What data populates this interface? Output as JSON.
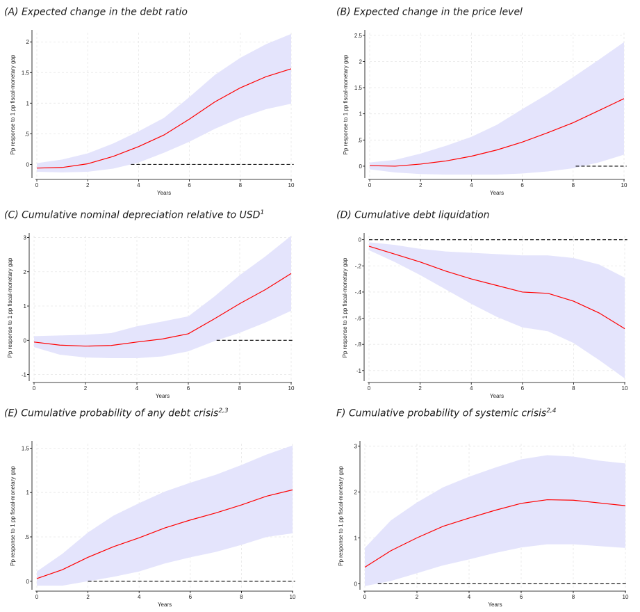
{
  "charts": [
    {
      "id": "A",
      "title": "(A) Expected change in the debt ratio",
      "sup": "",
      "chart_data": {
        "type": "area",
        "xlabel": "Years",
        "ylabel": "Pp response to 1 pp fiscal-monetary gap",
        "xlim": [
          0,
          10
        ],
        "ylim": [
          -0.2,
          2.15
        ],
        "xticks": [
          0,
          2,
          4,
          6,
          8,
          10
        ],
        "yticks": [
          0,
          0.5,
          1,
          1.5,
          2
        ],
        "ytick_labels": [
          "0",
          ".5",
          "1",
          "1.5",
          "2"
        ],
        "grid": true,
        "x": [
          0,
          1,
          2,
          3,
          4,
          5,
          6,
          7,
          8,
          9,
          10
        ],
        "series": [
          {
            "kind": "point_estimate",
            "color": "#ff0000",
            "values": [
              -0.06,
              -0.05,
              0.01,
              0.13,
              0.29,
              0.48,
              0.74,
              1.02,
              1.25,
              1.43,
              1.56
            ]
          },
          {
            "kind": "band_upper",
            "color": "#e4e4fc",
            "values": [
              0.02,
              0.08,
              0.18,
              0.34,
              0.54,
              0.76,
              1.1,
              1.46,
              1.74,
              1.96,
              2.13
            ]
          },
          {
            "kind": "band_lower",
            "color": "#e4e4fc",
            "values": [
              -0.12,
              -0.13,
              -0.12,
              -0.07,
              0.03,
              0.19,
              0.37,
              0.58,
              0.76,
              0.9,
              0.99
            ]
          },
          {
            "kind": "zero_line",
            "color": "#000000",
            "dashed": true,
            "x_from": 3.7,
            "x_to": 10.1,
            "value": 0
          }
        ]
      }
    },
    {
      "id": "B",
      "title": "(B) Expected change in the price level",
      "sup": "",
      "chart_data": {
        "type": "area",
        "xlabel": "Years",
        "ylabel": "Pp response to 1 pp fiscal-monetary gap",
        "xlim": [
          0,
          10
        ],
        "ylim": [
          -0.2,
          2.55
        ],
        "xticks": [
          0,
          2,
          4,
          6,
          8,
          10
        ],
        "yticks": [
          0,
          0.5,
          1,
          1.5,
          2,
          2.5
        ],
        "ytick_labels": [
          "0",
          ".5",
          "1",
          "1.5",
          "2",
          "2.5"
        ],
        "grid": true,
        "x": [
          0,
          1,
          2,
          3,
          4,
          5,
          6,
          7,
          8,
          9,
          10
        ],
        "series": [
          {
            "kind": "point_estimate",
            "color": "#ff0000",
            "values": [
              0.01,
              0.0,
              0.04,
              0.1,
              0.19,
              0.31,
              0.46,
              0.64,
              0.83,
              1.06,
              1.29
            ]
          },
          {
            "kind": "band_upper",
            "color": "#e4e4fc",
            "values": [
              0.07,
              0.12,
              0.24,
              0.39,
              0.56,
              0.79,
              1.09,
              1.38,
              1.7,
              2.03,
              2.37
            ]
          },
          {
            "kind": "band_lower",
            "color": "#e4e4fc",
            "values": [
              -0.06,
              -0.12,
              -0.15,
              -0.16,
              -0.16,
              -0.16,
              -0.14,
              -0.1,
              -0.04,
              0.07,
              0.22
            ]
          },
          {
            "kind": "zero_line",
            "color": "#000000",
            "dashed": true,
            "x_from": 8.1,
            "x_to": 10.1,
            "value": 0
          }
        ]
      }
    },
    {
      "id": "C",
      "title": "(C) Cumulative nominal depreciation relative to USD",
      "sup": "1",
      "chart_data": {
        "type": "area",
        "xlabel": "Years",
        "ylabel": "Pp response to 1 pp fiscal-monetary gap",
        "xlim": [
          0,
          10
        ],
        "ylim": [
          -1.15,
          3.05
        ],
        "xticks": [
          0,
          2,
          4,
          6,
          8,
          10
        ],
        "yticks": [
          -1,
          0,
          1,
          2,
          3
        ],
        "ytick_labels": [
          "-1",
          "0",
          "1",
          "2",
          "3"
        ],
        "grid": true,
        "x": [
          0,
          1,
          2,
          3,
          4,
          5,
          6,
          7,
          8,
          9,
          10
        ],
        "series": [
          {
            "kind": "point_estimate",
            "color": "#ff0000",
            "values": [
              -0.05,
              -0.14,
              -0.17,
              -0.15,
              -0.05,
              0.04,
              0.19,
              0.62,
              1.07,
              1.48,
              1.95
            ]
          },
          {
            "kind": "band_upper",
            "color": "#e4e4fc",
            "values": [
              0.12,
              0.14,
              0.16,
              0.21,
              0.41,
              0.55,
              0.7,
              1.27,
              1.9,
              2.45,
              3.05
            ]
          },
          {
            "kind": "band_lower",
            "color": "#e4e4fc",
            "values": [
              -0.2,
              -0.42,
              -0.5,
              -0.52,
              -0.52,
              -0.47,
              -0.32,
              -0.03,
              0.22,
              0.52,
              0.86
            ]
          },
          {
            "kind": "zero_line",
            "color": "#000000",
            "dashed": true,
            "x_from": 7.1,
            "x_to": 10.1,
            "value": 0
          }
        ]
      }
    },
    {
      "id": "D",
      "title": "(D) Cumulative debt liquidation",
      "sup": "",
      "chart_data": {
        "type": "area",
        "xlabel": "Years",
        "ylabel": "Pp response to 1 pp fiscal-monetary gap",
        "xlim": [
          0,
          10
        ],
        "ylim": [
          -1.07,
          0.03
        ],
        "xticks": [
          0,
          2,
          4,
          6,
          8,
          10
        ],
        "yticks": [
          0,
          -0.2,
          -0.4,
          -0.6,
          -0.8,
          -1
        ],
        "ytick_labels": [
          "0",
          "-.2",
          "-.4",
          "-.6",
          "-.8",
          "-1"
        ],
        "grid": true,
        "x": [
          0,
          1,
          2,
          3,
          4,
          5,
          6,
          7,
          8,
          9,
          10
        ],
        "series": [
          {
            "kind": "point_estimate",
            "color": "#ff0000",
            "values": [
              -0.05,
              -0.11,
              -0.17,
              -0.24,
              -0.3,
              -0.35,
              -0.4,
              -0.41,
              -0.47,
              -0.56,
              -0.68
            ]
          },
          {
            "kind": "band_upper",
            "color": "#e4e4fc",
            "values": [
              -0.02,
              -0.04,
              -0.07,
              -0.09,
              -0.1,
              -0.11,
              -0.12,
              -0.12,
              -0.14,
              -0.19,
              -0.29
            ]
          },
          {
            "kind": "band_lower",
            "color": "#e4e4fc",
            "values": [
              -0.08,
              -0.17,
              -0.27,
              -0.38,
              -0.49,
              -0.59,
              -0.67,
              -0.7,
              -0.79,
              -0.92,
              -1.06
            ]
          },
          {
            "kind": "zero_line",
            "color": "#000000",
            "dashed": true,
            "x_from": 0,
            "x_to": 10.1,
            "value": 0
          }
        ]
      }
    },
    {
      "id": "E",
      "title": "(E) Cumulative probability of any debt crisis",
      "sup": "2,3",
      "chart_data": {
        "type": "area",
        "xlabel": "Years",
        "ylabel": "Pp response to 1 pp fiscal-monetary gap",
        "xlim": [
          0,
          10
        ],
        "ylim": [
          -0.08,
          1.55
        ],
        "xticks": [
          0,
          2,
          4,
          6,
          8,
          10
        ],
        "yticks": [
          0,
          0.5,
          1,
          1.5
        ],
        "ytick_labels": [
          "0",
          ".5",
          "1",
          "1.5"
        ],
        "grid": true,
        "x": [
          0,
          1,
          2,
          3,
          4,
          5,
          6,
          7,
          8,
          9,
          10
        ],
        "series": [
          {
            "kind": "point_estimate",
            "color": "#ff0000",
            "values": [
              0.03,
              0.13,
              0.27,
              0.39,
              0.49,
              0.6,
              0.69,
              0.77,
              0.86,
              0.96,
              1.03
            ]
          },
          {
            "kind": "band_upper",
            "color": "#e4e4fc",
            "values": [
              0.11,
              0.31,
              0.55,
              0.74,
              0.88,
              1.01,
              1.11,
              1.2,
              1.31,
              1.43,
              1.53
            ]
          },
          {
            "kind": "band_lower",
            "color": "#e4e4fc",
            "values": [
              -0.05,
              -0.05,
              0.0,
              0.05,
              0.11,
              0.2,
              0.27,
              0.33,
              0.41,
              0.5,
              0.54
            ]
          },
          {
            "kind": "zero_line",
            "color": "#000000",
            "dashed": true,
            "x_from": 2,
            "x_to": 10.1,
            "value": 0
          }
        ]
      }
    },
    {
      "id": "F",
      "title": "F) Cumulative probability of systemic crisis",
      "sup": "2,4",
      "chart_data": {
        "type": "area",
        "xlabel": "Years",
        "ylabel": "Pp response to 1 pp fiscal-monetary gap",
        "xlim": [
          0,
          10
        ],
        "ylim": [
          -0.1,
          3.05
        ],
        "xticks": [
          0,
          2,
          4,
          6,
          8,
          10
        ],
        "yticks": [
          0,
          1,
          2,
          3
        ],
        "ytick_labels": [
          "0",
          "1",
          "2",
          "3"
        ],
        "grid": true,
        "x": [
          0,
          1,
          2,
          3,
          4,
          5,
          6,
          7,
          8,
          9,
          10
        ],
        "series": [
          {
            "kind": "point_estimate",
            "color": "#ff0000",
            "values": [
              0.36,
              0.72,
              1.0,
              1.25,
              1.43,
              1.6,
              1.75,
              1.83,
              1.82,
              1.76,
              1.7
            ]
          },
          {
            "kind": "band_upper",
            "color": "#e4e4fc",
            "values": [
              0.78,
              1.38,
              1.77,
              2.1,
              2.33,
              2.53,
              2.71,
              2.8,
              2.77,
              2.68,
              2.62
            ]
          },
          {
            "kind": "band_lower",
            "color": "#e4e4fc",
            "values": [
              -0.05,
              0.06,
              0.23,
              0.4,
              0.53,
              0.67,
              0.79,
              0.86,
              0.86,
              0.82,
              0.78
            ]
          },
          {
            "kind": "zero_line",
            "color": "#000000",
            "dashed": true,
            "x_from": 0.5,
            "x_to": 10.1,
            "value": 0
          }
        ]
      }
    }
  ]
}
